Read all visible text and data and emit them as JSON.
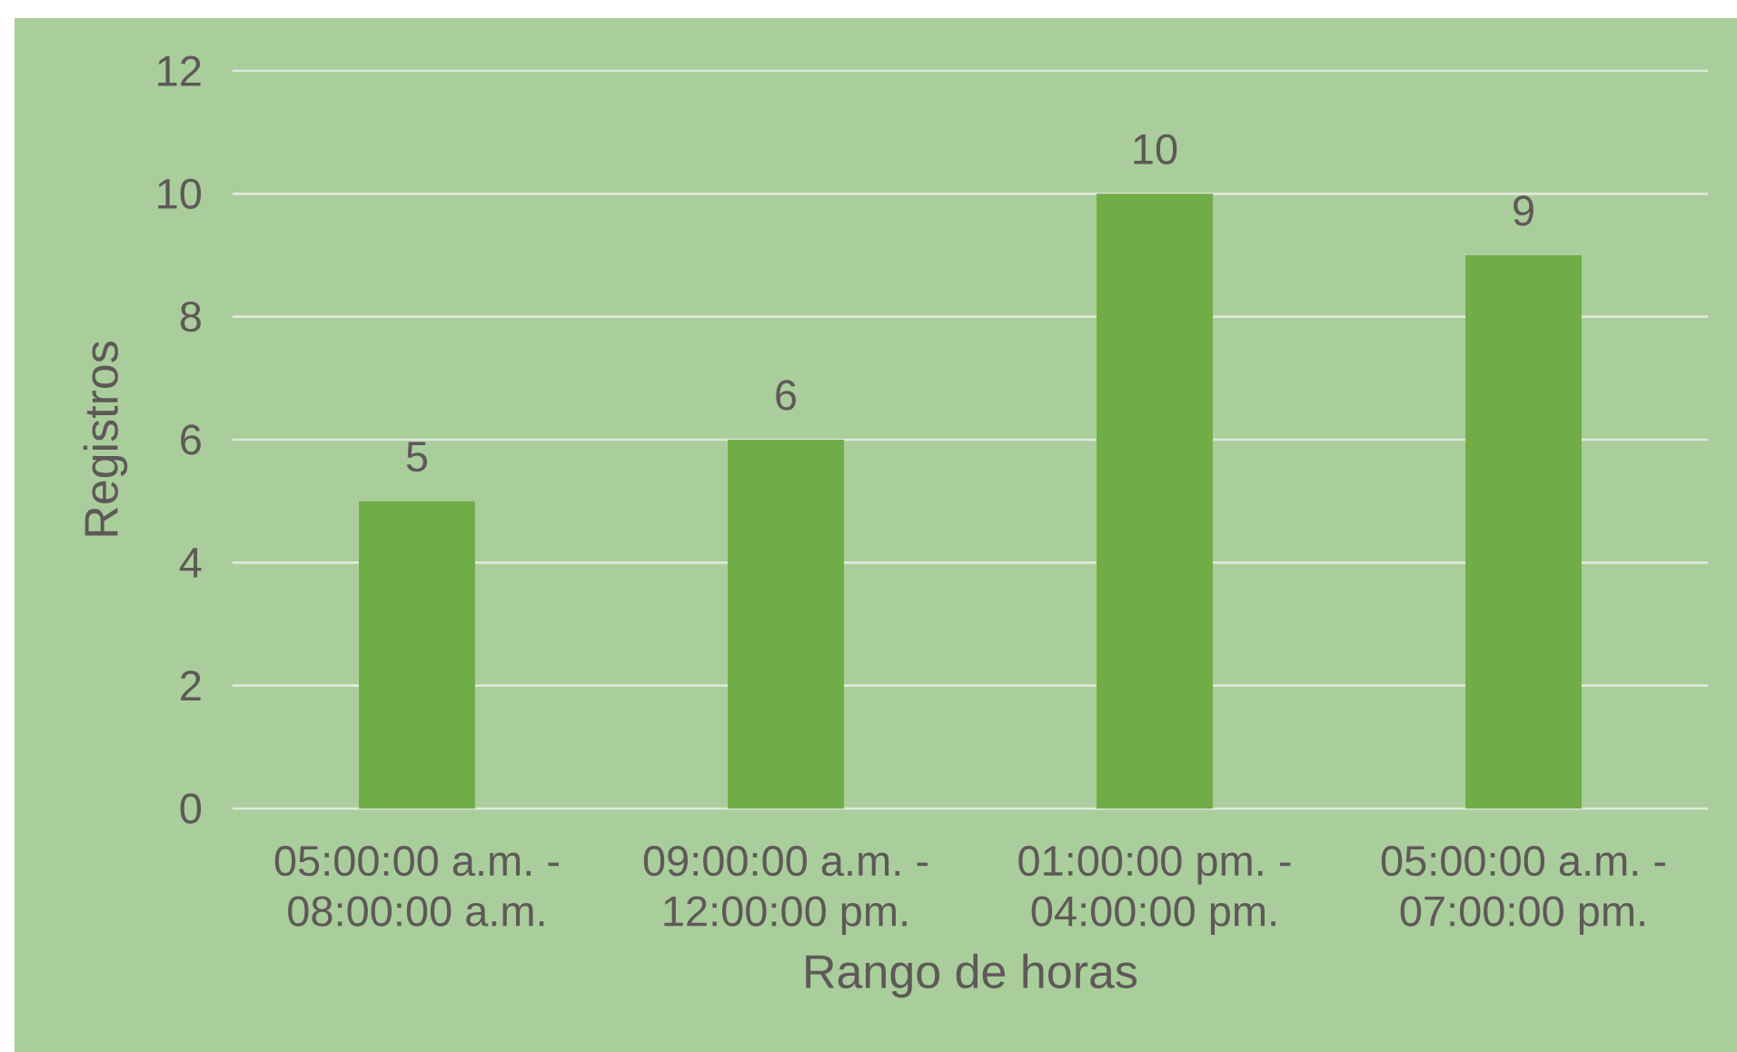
{
  "chart_data": {
    "type": "bar",
    "categories": [
      "05:00:00 a.m. - 08:00:00 a.m.",
      "09:00:00 a.m. - 12:00:00 pm.",
      "01:00:00 pm. - 04:00:00 pm.",
      "05:00:00 a.m. - 07:00:00 pm."
    ],
    "values": [
      5,
      6,
      10,
      9
    ],
    "color": "#70ad47",
    "xlabel": "Rango de horas",
    "ylabel": "Registros",
    "ylim": [
      0,
      12
    ],
    "yticks": [
      0,
      2,
      4,
      6,
      8,
      10,
      12
    ],
    "grid": "y",
    "data_labels": true
  }
}
